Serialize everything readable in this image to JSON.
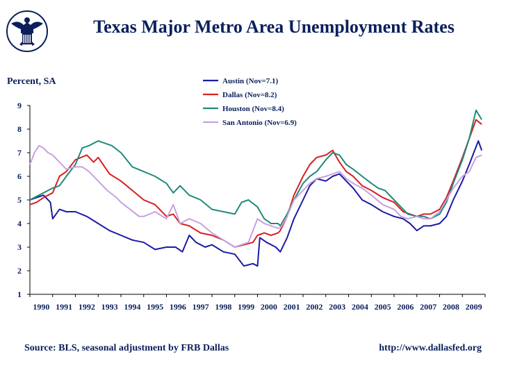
{
  "header": {
    "title": "Texas Major Metro Area Unemployment Rates",
    "logo_icon": "federal-reserve-eagle-seal-icon"
  },
  "footer": {
    "source": "Source: BLS, seasonal adjustment by FRB Dallas",
    "url": "http://www.dallasfed.org"
  },
  "chart_data": {
    "type": "line",
    "title": "Texas Major Metro Area Unemployment Rates",
    "ylabel": "Percent,  SA",
    "xlabel": "",
    "ylim": [
      1,
      9
    ],
    "xlim": [
      1990.0,
      2010.0
    ],
    "grid": false,
    "legend_position": "top-center",
    "x_tick_labels": [
      "1990",
      "1991",
      "1992",
      "1993",
      "1994",
      "1995",
      "1996",
      "1997",
      "1998",
      "1999",
      "2000",
      "2001",
      "2002",
      "2003",
      "2004",
      "2005",
      "2006",
      "2007",
      "2008",
      "2009"
    ],
    "y_tick_labels": [
      "1",
      "2",
      "3",
      "4",
      "5",
      "6",
      "7",
      "8",
      "9"
    ],
    "series": [
      {
        "name": "Austin (Nov=7.1)",
        "color": "#1a1aa6",
        "points": [
          [
            1990.0,
            5.0
          ],
          [
            1990.3,
            5.1
          ],
          [
            1990.6,
            5.2
          ],
          [
            1990.9,
            4.9
          ],
          [
            1991.0,
            4.2
          ],
          [
            1991.3,
            4.6
          ],
          [
            1991.6,
            4.5
          ],
          [
            1992.0,
            4.5
          ],
          [
            1992.5,
            4.3
          ],
          [
            1993.0,
            4.0
          ],
          [
            1993.5,
            3.7
          ],
          [
            1994.0,
            3.5
          ],
          [
            1994.5,
            3.3
          ],
          [
            1995.0,
            3.2
          ],
          [
            1995.5,
            2.9
          ],
          [
            1996.0,
            3.0
          ],
          [
            1996.4,
            3.0
          ],
          [
            1996.7,
            2.8
          ],
          [
            1997.0,
            3.5
          ],
          [
            1997.3,
            3.2
          ],
          [
            1997.7,
            3.0
          ],
          [
            1998.0,
            3.1
          ],
          [
            1998.5,
            2.8
          ],
          [
            1999.0,
            2.7
          ],
          [
            1999.4,
            2.2
          ],
          [
            1999.8,
            2.3
          ],
          [
            2000.0,
            2.2
          ],
          [
            2000.1,
            3.4
          ],
          [
            2000.4,
            3.2
          ],
          [
            2000.8,
            3.0
          ],
          [
            2001.0,
            2.8
          ],
          [
            2001.3,
            3.4
          ],
          [
            2001.6,
            4.2
          ],
          [
            2002.0,
            5.0
          ],
          [
            2002.3,
            5.6
          ],
          [
            2002.6,
            5.9
          ],
          [
            2003.0,
            5.8
          ],
          [
            2003.3,
            6.0
          ],
          [
            2003.6,
            6.1
          ],
          [
            2003.9,
            5.8
          ],
          [
            2004.2,
            5.5
          ],
          [
            2004.6,
            5.0
          ],
          [
            2005.0,
            4.8
          ],
          [
            2005.5,
            4.5
          ],
          [
            2006.0,
            4.3
          ],
          [
            2006.4,
            4.2
          ],
          [
            2006.7,
            4.0
          ],
          [
            2007.0,
            3.7
          ],
          [
            2007.3,
            3.9
          ],
          [
            2007.6,
            3.9
          ],
          [
            2008.0,
            4.0
          ],
          [
            2008.3,
            4.3
          ],
          [
            2008.6,
            5.0
          ],
          [
            2009.0,
            5.8
          ],
          [
            2009.3,
            6.5
          ],
          [
            2009.5,
            7.0
          ],
          [
            2009.7,
            7.5
          ],
          [
            2009.85,
            7.1
          ]
        ]
      },
      {
        "name": "Dallas (Nov=8.2)",
        "color": "#d62020",
        "points": [
          [
            1990.0,
            4.8
          ],
          [
            1990.3,
            4.9
          ],
          [
            1990.6,
            5.1
          ],
          [
            1991.0,
            5.3
          ],
          [
            1991.3,
            6.0
          ],
          [
            1991.6,
            6.2
          ],
          [
            1992.0,
            6.7
          ],
          [
            1992.5,
            6.9
          ],
          [
            1992.8,
            6.6
          ],
          [
            1993.0,
            6.8
          ],
          [
            1993.5,
            6.1
          ],
          [
            1994.0,
            5.8
          ],
          [
            1994.5,
            5.4
          ],
          [
            1995.0,
            5.0
          ],
          [
            1995.5,
            4.8
          ],
          [
            1996.0,
            4.3
          ],
          [
            1996.3,
            4.4
          ],
          [
            1996.6,
            4.0
          ],
          [
            1997.0,
            3.9
          ],
          [
            1997.5,
            3.6
          ],
          [
            1998.0,
            3.5
          ],
          [
            1998.5,
            3.3
          ],
          [
            1999.0,
            3.0
          ],
          [
            1999.4,
            3.1
          ],
          [
            1999.8,
            3.2
          ],
          [
            2000.0,
            3.5
          ],
          [
            2000.3,
            3.6
          ],
          [
            2000.6,
            3.5
          ],
          [
            2000.9,
            3.6
          ],
          [
            2001.0,
            3.7
          ],
          [
            2001.3,
            4.3
          ],
          [
            2001.6,
            5.2
          ],
          [
            2002.0,
            6.0
          ],
          [
            2002.3,
            6.5
          ],
          [
            2002.6,
            6.8
          ],
          [
            2003.0,
            6.9
          ],
          [
            2003.3,
            7.1
          ],
          [
            2003.6,
            6.6
          ],
          [
            2003.9,
            6.2
          ],
          [
            2004.2,
            6.0
          ],
          [
            2004.6,
            5.6
          ],
          [
            2005.0,
            5.4
          ],
          [
            2005.5,
            5.1
          ],
          [
            2006.0,
            4.9
          ],
          [
            2006.4,
            4.5
          ],
          [
            2006.7,
            4.4
          ],
          [
            2007.0,
            4.3
          ],
          [
            2007.3,
            4.4
          ],
          [
            2007.6,
            4.4
          ],
          [
            2008.0,
            4.6
          ],
          [
            2008.3,
            5.1
          ],
          [
            2008.6,
            5.8
          ],
          [
            2009.0,
            6.8
          ],
          [
            2009.3,
            7.6
          ],
          [
            2009.6,
            8.4
          ],
          [
            2009.85,
            8.2
          ]
        ]
      },
      {
        "name": "Houston (Nov=8.4)",
        "color": "#1f8a7a",
        "points": [
          [
            1990.0,
            5.0
          ],
          [
            1990.4,
            5.2
          ],
          [
            1990.8,
            5.4
          ],
          [
            1991.0,
            5.5
          ],
          [
            1991.3,
            5.6
          ],
          [
            1991.6,
            6.0
          ],
          [
            1992.0,
            6.5
          ],
          [
            1992.3,
            7.2
          ],
          [
            1992.6,
            7.3
          ],
          [
            1993.0,
            7.5
          ],
          [
            1993.3,
            7.4
          ],
          [
            1993.6,
            7.3
          ],
          [
            1994.0,
            7.0
          ],
          [
            1994.5,
            6.4
          ],
          [
            1995.0,
            6.2
          ],
          [
            1995.5,
            6.0
          ],
          [
            1996.0,
            5.7
          ],
          [
            1996.3,
            5.3
          ],
          [
            1996.6,
            5.6
          ],
          [
            1997.0,
            5.2
          ],
          [
            1997.5,
            5.0
          ],
          [
            1998.0,
            4.6
          ],
          [
            1998.5,
            4.5
          ],
          [
            1999.0,
            4.4
          ],
          [
            1999.3,
            4.9
          ],
          [
            1999.6,
            5.0
          ],
          [
            2000.0,
            4.7
          ],
          [
            2000.3,
            4.2
          ],
          [
            2000.6,
            4.0
          ],
          [
            2000.9,
            4.0
          ],
          [
            2001.0,
            3.9
          ],
          [
            2001.3,
            4.4
          ],
          [
            2001.6,
            5.0
          ],
          [
            2002.0,
            5.7
          ],
          [
            2002.3,
            6.0
          ],
          [
            2002.6,
            6.2
          ],
          [
            2003.0,
            6.7
          ],
          [
            2003.3,
            7.0
          ],
          [
            2003.6,
            6.9
          ],
          [
            2003.9,
            6.5
          ],
          [
            2004.2,
            6.3
          ],
          [
            2004.6,
            6.0
          ],
          [
            2005.0,
            5.7
          ],
          [
            2005.3,
            5.5
          ],
          [
            2005.6,
            5.4
          ],
          [
            2006.0,
            5.0
          ],
          [
            2006.3,
            4.7
          ],
          [
            2006.6,
            4.4
          ],
          [
            2007.0,
            4.3
          ],
          [
            2007.3,
            4.3
          ],
          [
            2007.6,
            4.2
          ],
          [
            2008.0,
            4.4
          ],
          [
            2008.3,
            4.9
          ],
          [
            2008.6,
            5.7
          ],
          [
            2009.0,
            6.7
          ],
          [
            2009.3,
            7.6
          ],
          [
            2009.6,
            8.8
          ],
          [
            2009.85,
            8.4
          ]
        ]
      },
      {
        "name": "San Antonio (Nov=6.9)",
        "color": "#c8a0e0",
        "points": [
          [
            1990.0,
            6.5
          ],
          [
            1990.2,
            7.0
          ],
          [
            1990.4,
            7.3
          ],
          [
            1990.6,
            7.2
          ],
          [
            1990.8,
            7.0
          ],
          [
            1991.0,
            6.9
          ],
          [
            1991.3,
            6.6
          ],
          [
            1991.6,
            6.3
          ],
          [
            1992.0,
            6.4
          ],
          [
            1992.3,
            6.4
          ],
          [
            1992.6,
            6.2
          ],
          [
            1993.0,
            5.8
          ],
          [
            1993.4,
            5.4
          ],
          [
            1993.8,
            5.1
          ],
          [
            1994.0,
            4.9
          ],
          [
            1994.4,
            4.6
          ],
          [
            1994.8,
            4.3
          ],
          [
            1995.0,
            4.3
          ],
          [
            1995.5,
            4.5
          ],
          [
            1996.0,
            4.2
          ],
          [
            1996.3,
            4.8
          ],
          [
            1996.6,
            4.0
          ],
          [
            1997.0,
            4.2
          ],
          [
            1997.5,
            4.0
          ],
          [
            1998.0,
            3.6
          ],
          [
            1998.5,
            3.3
          ],
          [
            1999.0,
            3.0
          ],
          [
            1999.3,
            3.1
          ],
          [
            1999.6,
            3.2
          ],
          [
            2000.0,
            4.2
          ],
          [
            2000.3,
            4.0
          ],
          [
            2000.6,
            3.9
          ],
          [
            2000.9,
            3.8
          ],
          [
            2001.0,
            3.8
          ],
          [
            2001.3,
            4.3
          ],
          [
            2001.6,
            5.0
          ],
          [
            2002.0,
            5.4
          ],
          [
            2002.3,
            5.7
          ],
          [
            2002.6,
            5.9
          ],
          [
            2003.0,
            6.0
          ],
          [
            2003.3,
            6.1
          ],
          [
            2003.6,
            6.2
          ],
          [
            2003.9,
            5.9
          ],
          [
            2004.2,
            5.7
          ],
          [
            2004.6,
            5.5
          ],
          [
            2005.0,
            5.2
          ],
          [
            2005.5,
            4.8
          ],
          [
            2006.0,
            4.6
          ],
          [
            2006.3,
            4.3
          ],
          [
            2006.6,
            4.2
          ],
          [
            2007.0,
            4.3
          ],
          [
            2007.3,
            4.2
          ],
          [
            2007.6,
            4.2
          ],
          [
            2008.0,
            4.5
          ],
          [
            2008.3,
            5.0
          ],
          [
            2008.6,
            5.5
          ],
          [
            2009.0,
            6.0
          ],
          [
            2009.3,
            6.2
          ],
          [
            2009.6,
            6.8
          ],
          [
            2009.85,
            6.9
          ]
        ]
      }
    ]
  }
}
